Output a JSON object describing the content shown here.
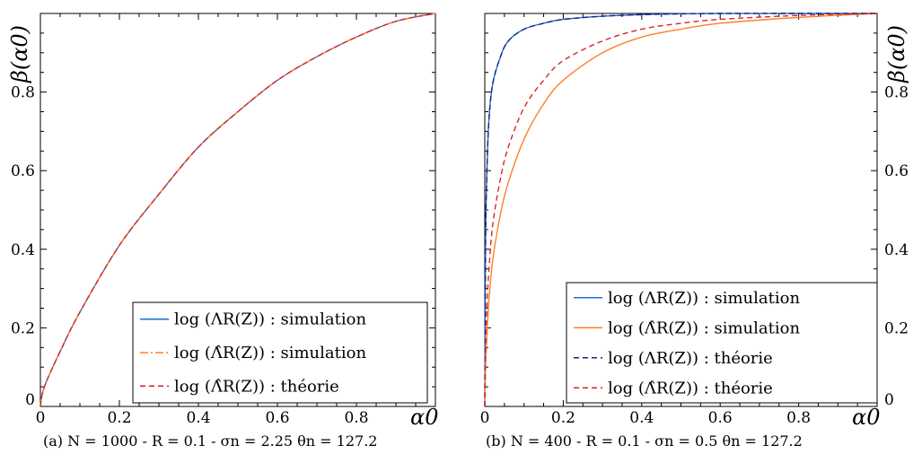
{
  "chart_data": [
    {
      "type": "line",
      "xlabel": "α0",
      "ylabel": "β(α0)",
      "xlim": [
        0,
        1
      ],
      "ylim": [
        0,
        1
      ],
      "x_ticks": [
        "0",
        "0.2",
        "0.4",
        "0.6",
        "0.8"
      ],
      "y_ticks": [
        "0",
        "0.2",
        "0.4",
        "0.6",
        "0.8"
      ],
      "grid": false,
      "legend_position": "bottom-right",
      "caption": "(a) N = 1000 - R = 0.1 - σn = 2.25 θn = 127.2",
      "series": [
        {
          "name": "log (ΛR(Z)) : simulation",
          "color": "#1f6fd1",
          "style": "solid",
          "x": [
            0,
            0.01,
            0.05,
            0.1,
            0.2,
            0.3,
            0.4,
            0.5,
            0.6,
            0.7,
            0.8,
            0.9,
            1.0
          ],
          "y": [
            0,
            0.05,
            0.14,
            0.24,
            0.41,
            0.54,
            0.66,
            0.75,
            0.83,
            0.89,
            0.94,
            0.98,
            1.0
          ]
        },
        {
          "name": "log (Λ̂R(Z)) : simulation",
          "color": "#ff7f2a",
          "style": "dashdot",
          "x": [
            0,
            0.01,
            0.05,
            0.1,
            0.2,
            0.3,
            0.4,
            0.5,
            0.6,
            0.7,
            0.8,
            0.9,
            1.0
          ],
          "y": [
            0,
            0.05,
            0.14,
            0.24,
            0.41,
            0.54,
            0.66,
            0.75,
            0.83,
            0.89,
            0.94,
            0.98,
            1.0
          ]
        },
        {
          "name": "log (Λ̂R(Z)) : théorie",
          "color": "#d62728",
          "style": "dashed",
          "x": [
            0,
            0.01,
            0.05,
            0.1,
            0.2,
            0.3,
            0.4,
            0.5,
            0.6,
            0.7,
            0.8,
            0.9,
            1.0
          ],
          "y": [
            0,
            0.05,
            0.14,
            0.24,
            0.41,
            0.54,
            0.66,
            0.75,
            0.83,
            0.89,
            0.94,
            0.98,
            1.0
          ]
        }
      ]
    },
    {
      "type": "line",
      "xlabel": "α0",
      "ylabel": "β(α0)",
      "xlim": [
        0,
        1
      ],
      "ylim": [
        0,
        1
      ],
      "x_ticks": [
        "0",
        "0.2",
        "0.4",
        "0.6",
        "0.8"
      ],
      "y_ticks": [
        "0",
        "0.2",
        "0.4",
        "0.6",
        "0.8"
      ],
      "grid": false,
      "legend_position": "bottom-right",
      "caption": "(b) N = 400 - R = 0.1 - σn = 0.5 θn = 127.2",
      "series": [
        {
          "name": "log (ΛR(Z)) : simulation",
          "color": "#1f6fd1",
          "style": "solid",
          "x": [
            0,
            0.002,
            0.005,
            0.01,
            0.02,
            0.04,
            0.06,
            0.1,
            0.15,
            0.2,
            0.3,
            0.4,
            0.5,
            0.6,
            0.8,
            1.0
          ],
          "y": [
            0,
            0.42,
            0.58,
            0.72,
            0.82,
            0.89,
            0.93,
            0.96,
            0.975,
            0.985,
            0.993,
            0.997,
            0.999,
            1.0,
            1.0,
            1.0
          ]
        },
        {
          "name": "log (Λ̂R(Z)) : simulation",
          "color": "#ff7f2a",
          "style": "solid",
          "x": [
            0,
            0.002,
            0.005,
            0.01,
            0.02,
            0.04,
            0.06,
            0.1,
            0.15,
            0.2,
            0.3,
            0.4,
            0.5,
            0.6,
            0.8,
            1.0
          ],
          "y": [
            0,
            0.1,
            0.17,
            0.26,
            0.37,
            0.49,
            0.57,
            0.68,
            0.77,
            0.83,
            0.9,
            0.94,
            0.96,
            0.975,
            0.99,
            1.0
          ]
        },
        {
          "name": "log (ΛR(Z)) : théorie",
          "color": "#1a237e",
          "style": "dashed",
          "x": [
            0,
            0.002,
            0.005,
            0.01,
            0.02,
            0.04,
            0.06,
            0.1,
            0.15,
            0.2,
            0.3,
            0.4,
            0.5,
            0.6,
            0.8,
            1.0
          ],
          "y": [
            0,
            0.42,
            0.58,
            0.72,
            0.82,
            0.89,
            0.93,
            0.96,
            0.975,
            0.985,
            0.993,
            0.997,
            0.999,
            1.0,
            1.0,
            1.0
          ]
        },
        {
          "name": "log (Λ̂R(Z)) : théorie",
          "color": "#d62728",
          "style": "dashed",
          "x": [
            0,
            0.002,
            0.005,
            0.01,
            0.02,
            0.04,
            0.06,
            0.1,
            0.15,
            0.2,
            0.3,
            0.4,
            0.5,
            0.6,
            0.8,
            1.0
          ],
          "y": [
            0,
            0.15,
            0.24,
            0.34,
            0.46,
            0.58,
            0.66,
            0.76,
            0.83,
            0.88,
            0.93,
            0.96,
            0.975,
            0.985,
            0.995,
            1.0
          ]
        }
      ]
    }
  ]
}
